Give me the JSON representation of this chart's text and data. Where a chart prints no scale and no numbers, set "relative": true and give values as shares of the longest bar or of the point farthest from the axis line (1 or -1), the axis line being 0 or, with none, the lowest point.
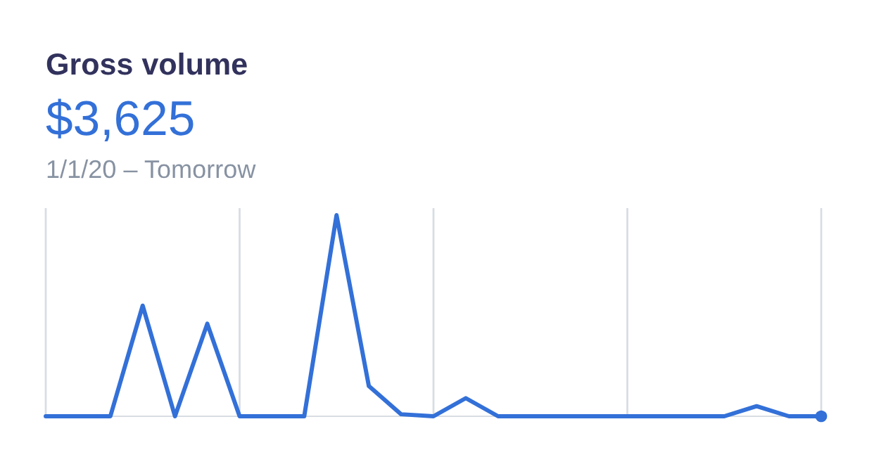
{
  "chart_data": {
    "type": "line",
    "title": "Gross volume",
    "subtitle": "$3,625",
    "annotations": [
      "1/1/20 – Tomorrow"
    ],
    "relative": true,
    "grid": "x",
    "categories": [
      null,
      null,
      null,
      null,
      null,
      null,
      null,
      null,
      null,
      null,
      null,
      null,
      null,
      null,
      null,
      null,
      null,
      null,
      null,
      null,
      null,
      null,
      null,
      null,
      null
    ],
    "series": [
      {
        "color": "#3370d8",
        "values": [
          0,
          0,
          0,
          0.55,
          0,
          0.46,
          0,
          0,
          0,
          1,
          0.15,
          0.01,
          0,
          0.09,
          0,
          0,
          0,
          0,
          0,
          0,
          0,
          0,
          0.05,
          0,
          0
        ]
      }
    ]
  }
}
